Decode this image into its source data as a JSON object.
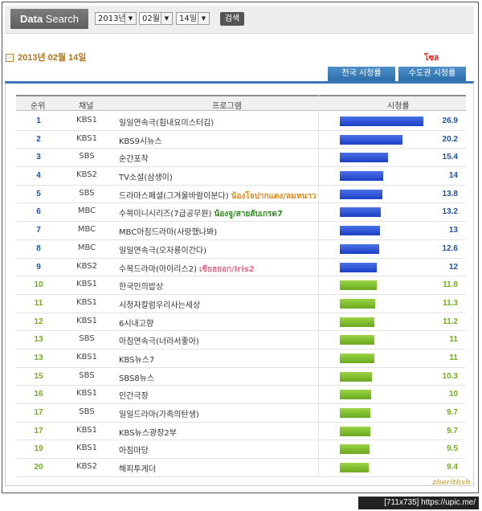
{
  "search": {
    "label_bold": "Data",
    "label_rest": " Search",
    "year": "2013년",
    "month": "02월",
    "day": "14일",
    "button": "검색"
  },
  "date_title": "2013년  02월  14일",
  "region_label": "โซล",
  "tabs": [
    "전국 시청률",
    "수도권 시청률"
  ],
  "table": {
    "headers": {
      "rank": "순위",
      "channel": "채널",
      "program": "프로그램",
      "rating": "시청률"
    },
    "rows": [
      {
        "rank": "1",
        "channel": "KBS1",
        "program": "일일연속극(힘내요미스터김)",
        "note": "",
        "value": 26.9,
        "value_label": "26.9",
        "color": "blue"
      },
      {
        "rank": "2",
        "channel": "KBS1",
        "program": "KBS9시뉴스",
        "note": "",
        "value": 20.2,
        "value_label": "20.2",
        "color": "blue"
      },
      {
        "rank": "3",
        "channel": "SBS",
        "program": "순간포착",
        "note": "",
        "value": 15.4,
        "value_label": "15.4",
        "color": "blue"
      },
      {
        "rank": "4",
        "channel": "KBS2",
        "program": "TV소설(삼생이)",
        "note": "",
        "value": 14,
        "value_label": "14",
        "color": "blue"
      },
      {
        "rank": "5",
        "channel": "SBS",
        "program": "드라마스페셜(그겨울바람이분다)",
        "note": "น้องโจปากแดง/ลมหนาว",
        "note_color": "#e08a1a",
        "value": 13.8,
        "value_label": "13.8",
        "color": "blue"
      },
      {
        "rank": "6",
        "channel": "MBC",
        "program": "수목미니시리즈(7급공무원)",
        "note": "น้องจู/สายลับเกรด7",
        "note_color": "#2f8a1e",
        "value": 13.2,
        "value_label": "13.2",
        "color": "blue"
      },
      {
        "rank": "7",
        "channel": "MBC",
        "program": "MBC아침드라마(사랑했나봐)",
        "note": "",
        "value": 13,
        "value_label": "13",
        "color": "blue"
      },
      {
        "rank": "8",
        "channel": "MBC",
        "program": "일일연속극(오자룡이간다)",
        "note": "",
        "value": 12.6,
        "value_label": "12.6",
        "color": "blue"
      },
      {
        "rank": "9",
        "channel": "KBS2",
        "program": "수목드라마(아이리스2)",
        "note": "เซียฮยอก/Iris2",
        "note_color": "#e0708a",
        "value": 12,
        "value_label": "12",
        "color": "blue"
      },
      {
        "rank": "10",
        "channel": "KBS1",
        "program": "한국인의밥상",
        "note": "",
        "value": 11.8,
        "value_label": "11.8",
        "color": "green"
      },
      {
        "rank": "11",
        "channel": "KBS1",
        "program": "시청자칼럼우리사는세상",
        "note": "",
        "value": 11.3,
        "value_label": "11.3",
        "color": "green"
      },
      {
        "rank": "12",
        "channel": "KBS1",
        "program": "6시내고향",
        "note": "",
        "value": 11.2,
        "value_label": "11.2",
        "color": "green"
      },
      {
        "rank": "13",
        "channel": "SBS",
        "program": "아침연속극(너라서좋아)",
        "note": "",
        "value": 11,
        "value_label": "11",
        "color": "green"
      },
      {
        "rank": "13",
        "channel": "KBS1",
        "program": "KBS뉴스7",
        "note": "",
        "value": 11,
        "value_label": "11",
        "color": "green"
      },
      {
        "rank": "15",
        "channel": "SBS",
        "program": "SBS8뉴스",
        "note": "",
        "value": 10.3,
        "value_label": "10.3",
        "color": "green"
      },
      {
        "rank": "16",
        "channel": "KBS1",
        "program": "인간극장",
        "note": "",
        "value": 10,
        "value_label": "10",
        "color": "green"
      },
      {
        "rank": "17",
        "channel": "SBS",
        "program": "일일드라마(가족의탄생)",
        "note": "",
        "value": 9.7,
        "value_label": "9.7",
        "color": "green"
      },
      {
        "rank": "17",
        "channel": "KBS1",
        "program": "KBS뉴스광장2부",
        "note": "",
        "value": 9.7,
        "value_label": "9.7",
        "color": "green"
      },
      {
        "rank": "19",
        "channel": "KBS1",
        "program": "아침마당",
        "note": "",
        "value": 9.5,
        "value_label": "9.5",
        "color": "green"
      },
      {
        "rank": "20",
        "channel": "KBS2",
        "program": "해피투게더",
        "note": "",
        "value": 9.4,
        "value_label": "9.4",
        "color": "green"
      }
    ]
  },
  "watermark": "zherithsh",
  "footer": "[711x735] https://upic.me/"
}
